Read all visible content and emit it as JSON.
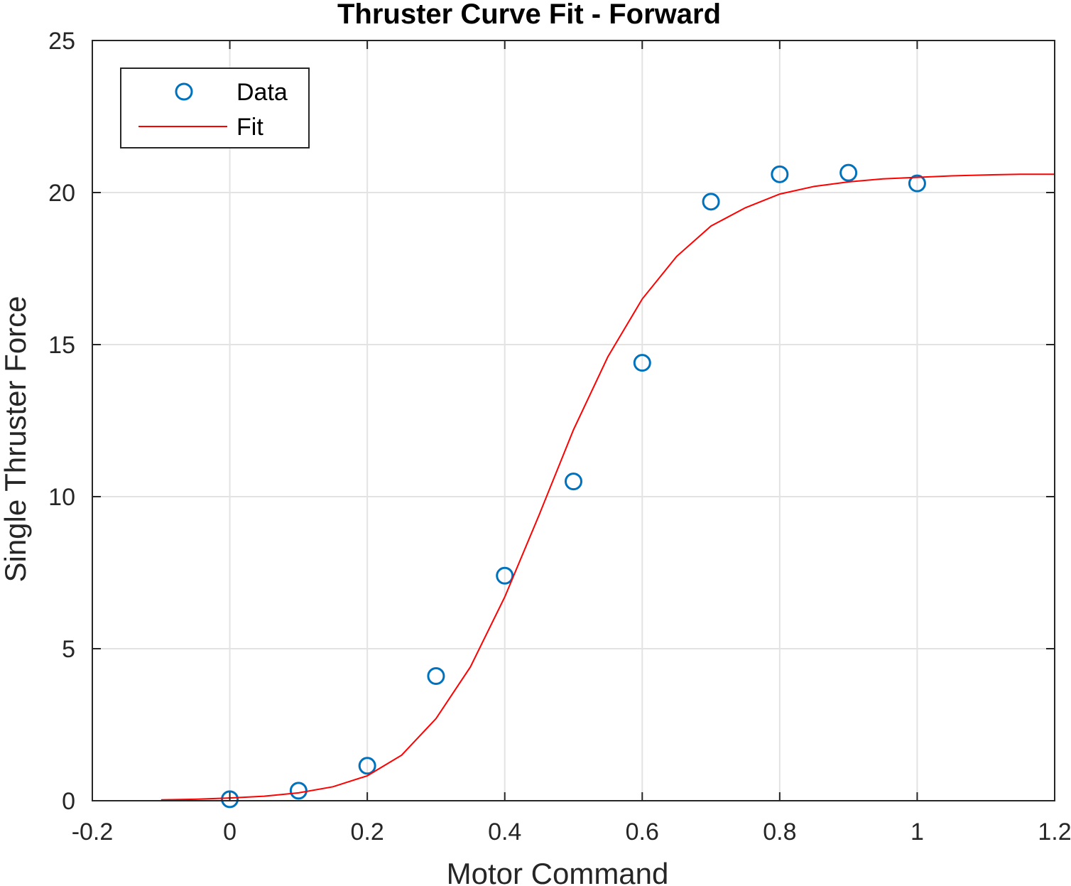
{
  "chart_data": {
    "type": "scatter",
    "title": "Thruster Curve Fit - Forward",
    "xlabel": "Motor Command",
    "ylabel": "Single Thruster Force",
    "xlim": [
      -0.2,
      1.2
    ],
    "ylim": [
      0,
      25
    ],
    "xticks": [
      "-0.2",
      "0",
      "0.2",
      "0.4",
      "0.6",
      "0.8",
      "1",
      "1.2"
    ],
    "yticks": [
      "0",
      "5",
      "10",
      "15",
      "20",
      "25"
    ],
    "grid": true,
    "legend_position": "top-left",
    "series": [
      {
        "name": "Data",
        "kind": "markers",
        "marker": "circle-open",
        "color": "#0072BD",
        "x": [
          0,
          0.1,
          0.2,
          0.3,
          0.4,
          0.5,
          0.6,
          0.7,
          0.8,
          0.9,
          1.0
        ],
        "y": [
          0.05,
          0.33,
          1.15,
          4.1,
          7.4,
          10.5,
          14.4,
          19.7,
          20.6,
          20.65,
          20.3
        ]
      },
      {
        "name": "Fit",
        "kind": "line",
        "color": "#FF0000",
        "x": [
          -0.1,
          -0.05,
          0.0,
          0.05,
          0.1,
          0.15,
          0.2,
          0.25,
          0.3,
          0.35,
          0.4,
          0.45,
          0.5,
          0.55,
          0.6,
          0.65,
          0.7,
          0.75,
          0.8,
          0.85,
          0.9,
          0.95,
          1.0,
          1.05,
          1.1,
          1.15,
          1.2
        ],
        "y": [
          0.03,
          0.05,
          0.09,
          0.15,
          0.26,
          0.46,
          0.82,
          1.5,
          2.7,
          4.4,
          6.7,
          9.4,
          12.2,
          14.6,
          16.5,
          17.9,
          18.9,
          19.5,
          19.95,
          20.2,
          20.35,
          20.45,
          20.5,
          20.55,
          20.58,
          20.6,
          20.6
        ]
      }
    ]
  }
}
